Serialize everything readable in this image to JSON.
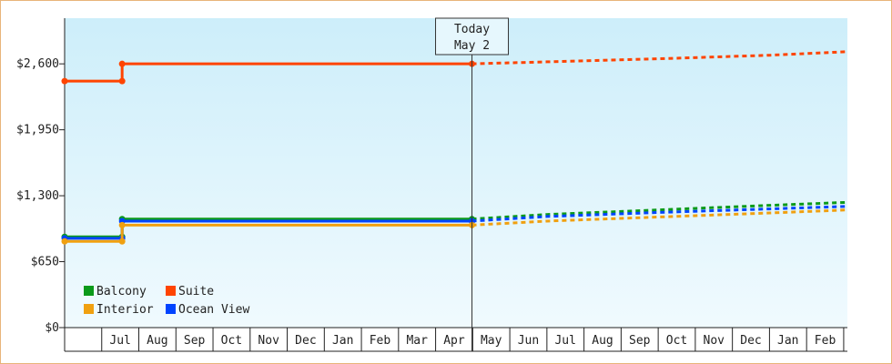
{
  "chart_data": {
    "type": "line",
    "title": "",
    "xlabel": "",
    "ylabel": "",
    "ylim": [
      0,
      3050
    ],
    "y_ticks": [
      {
        "value": 0,
        "label": "$0"
      },
      {
        "value": 650,
        "label": "$650"
      },
      {
        "value": 1300,
        "label": "$1,300"
      },
      {
        "value": 1950,
        "label": "$1,950"
      },
      {
        "value": 2600,
        "label": "$2,600"
      }
    ],
    "x_months": [
      "Jun",
      "Jul",
      "Aug",
      "Sep",
      "Oct",
      "Nov",
      "Dec",
      "Jan",
      "Feb",
      "Mar",
      "Apr",
      "May",
      "Jun",
      "Jul",
      "Aug",
      "Sep",
      "Oct",
      "Nov",
      "Dec",
      "Jan",
      "Feb",
      "Mar"
    ],
    "x_tick_labels": [
      "",
      "Jul",
      "Aug",
      "Sep",
      "Oct",
      "Nov",
      "Dec",
      "Jan",
      "Feb",
      "Mar",
      "Apr",
      "May",
      "Jun",
      "Jul",
      "Aug",
      "Sep",
      "Oct",
      "Nov",
      "Dec",
      "Jan",
      "Feb",
      ""
    ],
    "x_range": [
      0,
      21.1
    ],
    "today": {
      "x": 10.98,
      "line1": "Today",
      "line2": "May 2"
    },
    "legend_position": "bottom-left",
    "grid": false,
    "series": [
      {
        "name": "Suite",
        "color": "#ff4400",
        "history": [
          [
            0,
            2430
          ],
          [
            1.55,
            2430
          ],
          [
            1.55,
            2600
          ],
          [
            10.98,
            2600
          ]
        ],
        "markers": [
          [
            0,
            2430
          ],
          [
            1.55,
            2430
          ],
          [
            1.55,
            2600
          ],
          [
            10.98,
            2600
          ]
        ],
        "forecast": [
          [
            10.98,
            2600
          ],
          [
            13,
            2620
          ],
          [
            16,
            2650
          ],
          [
            19,
            2685
          ],
          [
            21.1,
            2720
          ]
        ]
      },
      {
        "name": "Balcony",
        "color": "#0b9a1a",
        "history": [
          [
            0,
            895
          ],
          [
            1.55,
            895
          ],
          [
            1.55,
            1070
          ],
          [
            10.98,
            1070
          ]
        ],
        "markers": [
          [
            0,
            895
          ],
          [
            1.55,
            895
          ],
          [
            1.55,
            1070
          ],
          [
            10.98,
            1070
          ]
        ],
        "forecast": [
          [
            10.98,
            1070
          ],
          [
            13,
            1115
          ],
          [
            16,
            1160
          ],
          [
            19,
            1205
          ],
          [
            21.1,
            1235
          ]
        ]
      },
      {
        "name": "Ocean View",
        "color": "#0044ff",
        "history": [
          [
            0,
            880
          ],
          [
            1.55,
            880
          ],
          [
            1.55,
            1050
          ],
          [
            10.98,
            1050
          ]
        ],
        "markers": [
          [
            0,
            880
          ],
          [
            1.55,
            880
          ],
          [
            1.55,
            1050
          ],
          [
            10.98,
            1050
          ]
        ],
        "forecast": [
          [
            10.98,
            1050
          ],
          [
            13,
            1095
          ],
          [
            16,
            1135
          ],
          [
            19,
            1170
          ],
          [
            21.1,
            1195
          ]
        ]
      },
      {
        "name": "Interior",
        "color": "#f0a010",
        "history": [
          [
            0,
            850
          ],
          [
            1.55,
            850
          ],
          [
            1.55,
            1010
          ],
          [
            10.98,
            1010
          ]
        ],
        "markers": [
          [
            0,
            850
          ],
          [
            1.55,
            850
          ],
          [
            1.55,
            1010
          ],
          [
            10.98,
            1010
          ]
        ],
        "forecast": [
          [
            10.98,
            1010
          ],
          [
            13,
            1050
          ],
          [
            16,
            1090
          ],
          [
            19,
            1130
          ],
          [
            21.1,
            1160
          ]
        ]
      }
    ],
    "legend": [
      {
        "name": "Balcony",
        "color": "#0b9a1a"
      },
      {
        "name": "Suite",
        "color": "#ff4400"
      },
      {
        "name": "Interior",
        "color": "#f0a010"
      },
      {
        "name": "Ocean View",
        "color": "#0044ff"
      }
    ]
  }
}
